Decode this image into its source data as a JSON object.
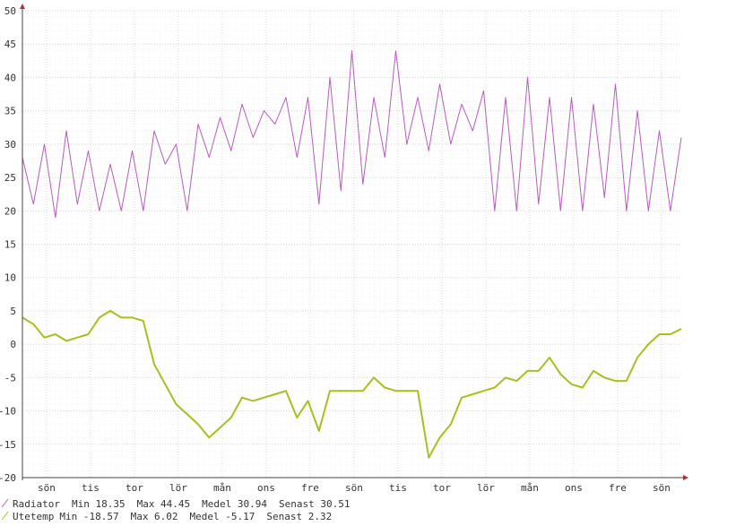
{
  "chart_data": {
    "type": "line",
    "xlim": [
      0,
      30
    ],
    "ylim": [
      -20,
      50
    ],
    "yticks": [
      -20,
      -15,
      -10,
      -5,
      0,
      5,
      10,
      15,
      20,
      25,
      30,
      35,
      40,
      45,
      50
    ],
    "xticks": [
      {
        "value": 1.1,
        "label": "sön"
      },
      {
        "value": 3.1,
        "label": "tis"
      },
      {
        "value": 5.1,
        "label": "tor"
      },
      {
        "value": 7.1,
        "label": "lör"
      },
      {
        "value": 9.1,
        "label": "mån"
      },
      {
        "value": 11.1,
        "label": "ons"
      },
      {
        "value": 13.1,
        "label": "fre"
      },
      {
        "value": 15.1,
        "label": "sön"
      },
      {
        "value": 17.1,
        "label": "tis"
      },
      {
        "value": 19.1,
        "label": "tor"
      },
      {
        "value": 21.1,
        "label": "lör"
      },
      {
        "value": 23.1,
        "label": "mån"
      },
      {
        "value": 25.1,
        "label": "ons"
      },
      {
        "value": 27.1,
        "label": "fre"
      },
      {
        "value": 29.1,
        "label": "sön"
      }
    ],
    "grid": true,
    "stat_labels": [
      "Min",
      "Max",
      "Medel",
      "Senast"
    ],
    "x": [
      0,
      0.5,
      1,
      1.5,
      2,
      2.5,
      3,
      3.5,
      4,
      4.5,
      5,
      5.5,
      6,
      6.5,
      7,
      7.5,
      8,
      8.5,
      9,
      9.5,
      10,
      10.5,
      11,
      11.5,
      12,
      12.5,
      13,
      13.5,
      14,
      14.5,
      15,
      15.5,
      16,
      16.5,
      17,
      17.5,
      18,
      18.5,
      19,
      19.5,
      20,
      20.5,
      21,
      21.5,
      22,
      22.5,
      23,
      23.5,
      24,
      24.5,
      25,
      25.5,
      26,
      26.5,
      27,
      27.5,
      28,
      28.5,
      29,
      29.5,
      30
    ],
    "series": [
      {
        "name": "Radiator",
        "color": "#b85cc0",
        "stats": [
          18.35,
          44.45,
          30.94,
          30.51
        ],
        "values": [
          28,
          21,
          30,
          19,
          32,
          21,
          29,
          20,
          27,
          20,
          29,
          20,
          32,
          27,
          30,
          20,
          33,
          28,
          34,
          29,
          36,
          31,
          35,
          33,
          37,
          28,
          37,
          21,
          40,
          23,
          44,
          24,
          37,
          28,
          44,
          30,
          37,
          29,
          39,
          30,
          36,
          32,
          38,
          20,
          37,
          20,
          40,
          21,
          37,
          20,
          37,
          20,
          36,
          22,
          39,
          20,
          35,
          20,
          32,
          20,
          31
        ]
      },
      {
        "name": "Utetemp",
        "color": "#a4c21e",
        "stats": [
          -18.57,
          6.02,
          -5.17,
          2.32
        ],
        "values": [
          4,
          3,
          1,
          1.5,
          0.5,
          1,
          1.5,
          4,
          5,
          4,
          4,
          3.5,
          -3,
          -6,
          -9,
          -10.5,
          -12,
          -14,
          -12.5,
          -11,
          -8,
          -8.5,
          -8,
          -7.5,
          -7,
          -11,
          -8.5,
          -13,
          -7,
          -7,
          -7,
          -7,
          -5,
          -6.5,
          -7,
          -7,
          -7,
          -17,
          -14,
          -12,
          -8,
          -7.5,
          -7,
          -6.5,
          -5,
          -5.5,
          -4,
          -4,
          -2,
          -4.5,
          -6,
          -6.5,
          -4,
          -5,
          -5.5,
          -5.5,
          -2,
          0,
          1.5,
          1.5,
          2.3
        ]
      }
    ]
  }
}
